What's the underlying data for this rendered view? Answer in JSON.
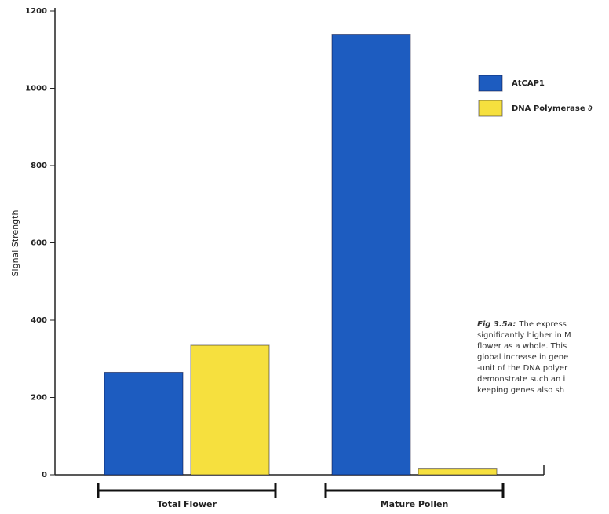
{
  "chart_data": {
    "type": "bar",
    "y_label": "Signal Strength",
    "categories": [
      "Total Flower",
      "Mature Pollen"
    ],
    "series": [
      {
        "name": "AtCAP1",
        "color": "#1d5cc0",
        "values": [
          265,
          1140
        ]
      },
      {
        "name": "DNA Polymerase ∂",
        "color": "#f6e03e",
        "values": [
          335,
          15
        ]
      }
    ],
    "ylim": [
      0,
      1200
    ],
    "yticks": [
      0,
      200,
      400,
      600,
      800,
      1000,
      1200
    ],
    "legend": "upper right",
    "caption_label": "Fig 3.5a:",
    "caption_lines": [
      "The express",
      "significantly higher in M",
      "flower as a whole. This",
      "global increase in gene",
      "-unit of the DNA polyer",
      "demonstrate such an i",
      "keeping genes also sh"
    ]
  }
}
